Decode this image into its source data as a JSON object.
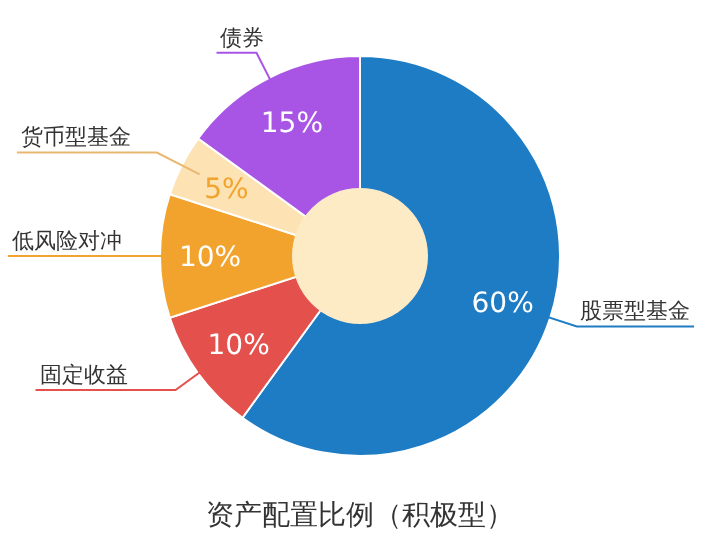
{
  "chart_data": {
    "type": "donut",
    "title": "资产配置比例（积极型）",
    "categories": [
      "股票型基金",
      "固定收益",
      "低风险对冲",
      "货币型基金",
      "债券"
    ],
    "values": [
      60,
      10,
      10,
      5,
      15
    ],
    "value_labels": [
      "60%",
      "10%",
      "10%",
      "5%",
      "15%"
    ],
    "colors": [
      "#1e7cc4",
      "#e4504c",
      "#f2a32e",
      "#fde3b4",
      "#a855e6"
    ]
  }
}
